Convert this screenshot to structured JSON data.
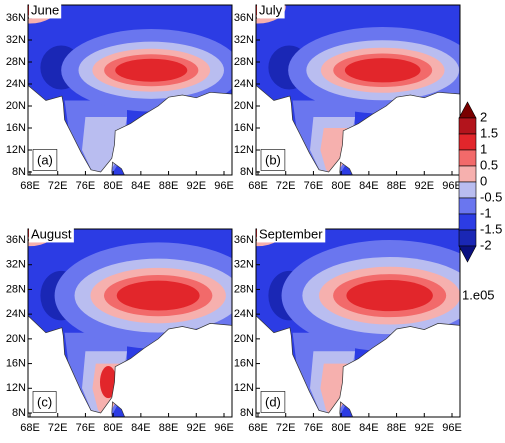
{
  "panels": [
    {
      "title": "June",
      "label": "(a)"
    },
    {
      "title": "July",
      "label": "(b)"
    },
    {
      "title": "August",
      "label": "(c)"
    },
    {
      "title": "September",
      "label": "(d)"
    }
  ],
  "lat_labels": [
    "36N",
    "32N",
    "28N",
    "24N",
    "20N",
    "16N",
    "12N",
    "8N"
  ],
  "lon_labels": [
    "68E",
    "72E",
    "76E",
    "80E",
    "84E",
    "88E",
    "92E",
    "96E"
  ],
  "colorbar": {
    "levels": [
      2,
      1.5,
      1,
      0.5,
      0,
      -0.5,
      -1,
      -1.5,
      -2
    ],
    "colors": [
      "#7a0000",
      "#b3141c",
      "#e2262b",
      "#f26a6a",
      "#f6b0ae",
      "#b9bdf0",
      "#6a76ef",
      "#2c3ce4",
      "#1a27b5",
      "#0a1080"
    ],
    "multiplier": "1.e05"
  }
}
